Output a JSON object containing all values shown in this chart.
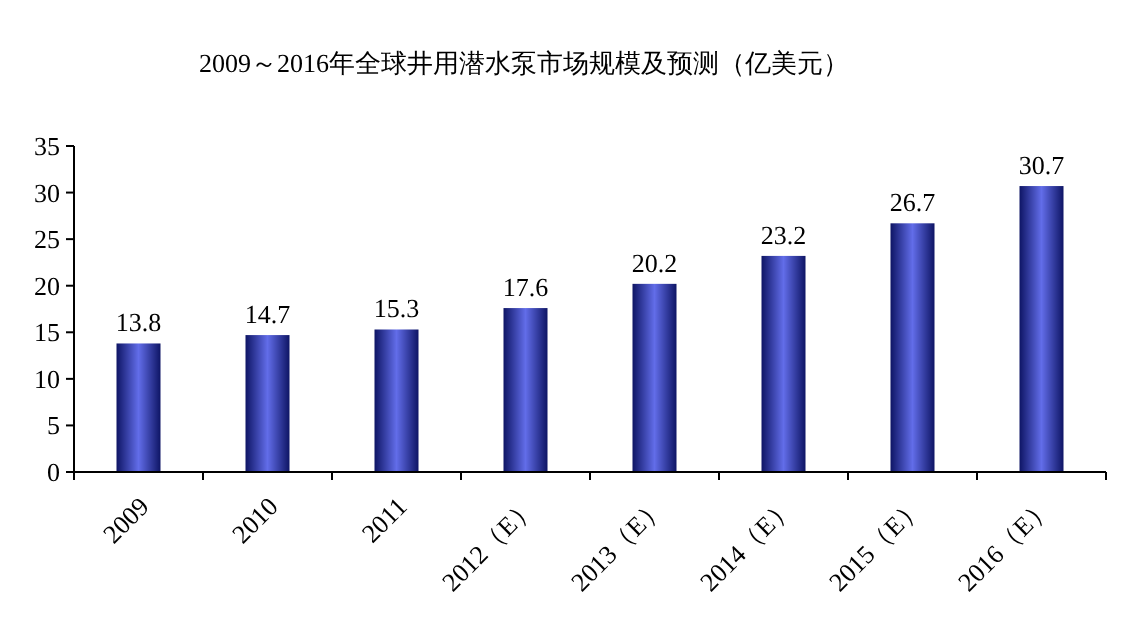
{
  "chart_data": {
    "type": "bar",
    "title": "2009～2016年全球井用潜水泵市场规模及预测（亿美元）",
    "categories": [
      "2009",
      "2010",
      "2011",
      "2012（E）",
      "2013（E）",
      "2014（E）",
      "2015（E）",
      "2016（E）"
    ],
    "values": [
      13.8,
      14.7,
      15.3,
      17.6,
      20.2,
      23.2,
      26.7,
      30.7
    ],
    "color": "#1f2ee0",
    "ylim": [
      0,
      35
    ],
    "yticks": [
      0,
      5,
      10,
      15,
      20,
      25,
      30,
      35
    ],
    "data_labels": true
  }
}
